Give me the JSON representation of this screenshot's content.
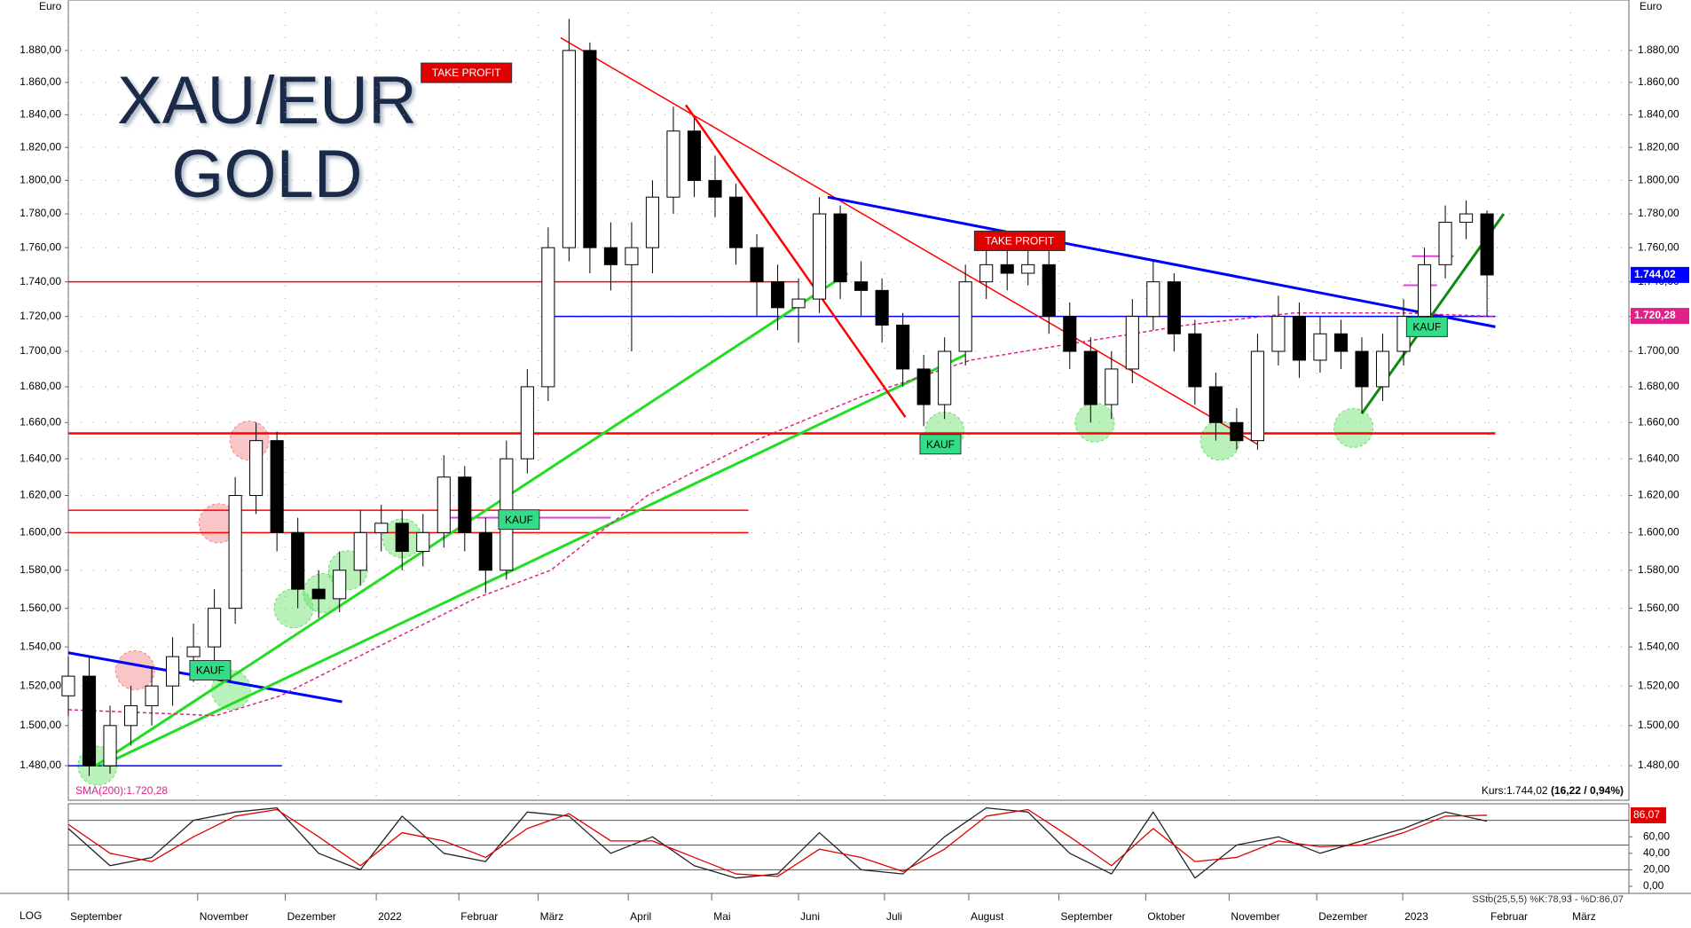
{
  "chart_data": [
    {
      "type": "candlestick",
      "title_lines": [
        "XAU/EUR",
        "GOLD"
      ],
      "y_label": "Euro",
      "scale_label": "LOG",
      "log_scale": true,
      "grid": true,
      "up_color": "#ffffff",
      "down_color": "#000000",
      "x": [
        0,
        0.25,
        0.5,
        0.75,
        1,
        1.25,
        1.5,
        1.75,
        2,
        2.25,
        2.5,
        2.75,
        3,
        3.25,
        3.5,
        3.75,
        4,
        4.25,
        4.5,
        4.75,
        5,
        5.25,
        5.5,
        5.75,
        6,
        6.25,
        6.5,
        6.75,
        7,
        7.25,
        7.5,
        7.75,
        8,
        8.25,
        8.5,
        8.75,
        9,
        9.25,
        9.5,
        9.75,
        10,
        10.25,
        10.5,
        10.75,
        11,
        11.25,
        11.5,
        11.75,
        12,
        12.25,
        12.5,
        12.75,
        13,
        13.25,
        13.5,
        13.75,
        14,
        14.25,
        14.5,
        14.75,
        15,
        15.25,
        15.5,
        15.75,
        16,
        16.25,
        16.5,
        16.75,
        17
      ],
      "open": [
        1515,
        1525,
        1480,
        1500,
        1510,
        1520,
        1535,
        1540,
        1560,
        1620,
        1650,
        1600,
        1570,
        1565,
        1580,
        1600,
        1605,
        1590,
        1600,
        1630,
        1600,
        1580,
        1640,
        1680,
        1760,
        1880,
        1760,
        1750,
        1760,
        1790,
        1830,
        1800,
        1790,
        1760,
        1740,
        1725,
        1730,
        1780,
        1740,
        1735,
        1715,
        1690,
        1670,
        1700,
        1740,
        1750,
        1745,
        1750,
        1720,
        1700,
        1670,
        1690,
        1720,
        1740,
        1710,
        1680,
        1660,
        1650,
        1700,
        1720,
        1695,
        1710,
        1700,
        1680,
        1700,
        1720,
        1750,
        1775,
        1780
      ],
      "high": [
        1535,
        1535,
        1510,
        1520,
        1530,
        1545,
        1552,
        1570,
        1630,
        1660,
        1655,
        1608,
        1580,
        1590,
        1612,
        1615,
        1612,
        1610,
        1642,
        1636,
        1608,
        1650,
        1690,
        1772,
        1900,
        1885,
        1775,
        1775,
        1800,
        1845,
        1838,
        1815,
        1798,
        1768,
        1750,
        1742,
        1790,
        1785,
        1752,
        1742,
        1722,
        1698,
        1708,
        1750,
        1760,
        1762,
        1765,
        1758,
        1728,
        1708,
        1700,
        1730,
        1752,
        1745,
        1718,
        1688,
        1668,
        1710,
        1732,
        1728,
        1720,
        1718,
        1708,
        1710,
        1730,
        1760,
        1785,
        1788,
        1782
      ],
      "low": [
        1505,
        1475,
        1476,
        1490,
        1500,
        1510,
        1522,
        1530,
        1552,
        1610,
        1590,
        1560,
        1555,
        1558,
        1572,
        1590,
        1580,
        1582,
        1592,
        1590,
        1568,
        1575,
        1632,
        1672,
        1752,
        1745,
        1735,
        1700,
        1745,
        1780,
        1790,
        1778,
        1750,
        1720,
        1712,
        1705,
        1722,
        1730,
        1720,
        1705,
        1680,
        1658,
        1662,
        1692,
        1730,
        1735,
        1738,
        1710,
        1690,
        1660,
        1662,
        1682,
        1712,
        1700,
        1670,
        1650,
        1645,
        1645,
        1692,
        1685,
        1688,
        1690,
        1665,
        1672,
        1692,
        1712,
        1742,
        1765,
        1720
      ],
      "close": [
        1525,
        1480,
        1500,
        1510,
        1520,
        1535,
        1540,
        1560,
        1620,
        1650,
        1600,
        1570,
        1565,
        1580,
        1600,
        1605,
        1590,
        1600,
        1630,
        1600,
        1580,
        1640,
        1680,
        1760,
        1880,
        1760,
        1750,
        1760,
        1790,
        1830,
        1800,
        1790,
        1760,
        1740,
        1725,
        1730,
        1780,
        1740,
        1735,
        1715,
        1690,
        1670,
        1700,
        1740,
        1750,
        1745,
        1750,
        1720,
        1700,
        1670,
        1690,
        1720,
        1740,
        1710,
        1680,
        1660,
        1650,
        1700,
        1720,
        1695,
        1710,
        1700,
        1680,
        1700,
        1720,
        1750,
        1775,
        1780,
        1744
      ],
      "xlim": [
        0,
        18.7
      ],
      "ylim": [
        1463,
        1912
      ],
      "yticks": [
        {
          "value": 1480,
          "label": "1.480,00"
        },
        {
          "value": 1500,
          "label": "1.500,00"
        },
        {
          "value": 1520,
          "label": "1.520,00"
        },
        {
          "value": 1540,
          "label": "1.540,00"
        },
        {
          "value": 1560,
          "label": "1.560,00"
        },
        {
          "value": 1580,
          "label": "1.580,00"
        },
        {
          "value": 1600,
          "label": "1.600,00"
        },
        {
          "value": 1620,
          "label": "1.620,00"
        },
        {
          "value": 1640,
          "label": "1.640,00"
        },
        {
          "value": 1660,
          "label": "1.660,00"
        },
        {
          "value": 1680,
          "label": "1.680,00"
        },
        {
          "value": 1700,
          "label": "1.700,00"
        },
        {
          "value": 1720,
          "label": "1.720,00"
        },
        {
          "value": 1740,
          "label": "1.740,00"
        },
        {
          "value": 1760,
          "label": "1.760,00"
        },
        {
          "value": 1780,
          "label": "1.780,00"
        },
        {
          "value": 1800,
          "label": "1.800,00"
        },
        {
          "value": 1820,
          "label": "1.820,00"
        },
        {
          "value": 1840,
          "label": "1.840,00"
        },
        {
          "value": 1860,
          "label": "1.860,00"
        },
        {
          "value": 1880,
          "label": "1.880,00"
        }
      ],
      "xticks": [
        {
          "value": 0,
          "label": "September"
        },
        {
          "value": 1.55,
          "label": "November"
        },
        {
          "value": 2.6,
          "label": "Dezember"
        },
        {
          "value": 3.69,
          "label": "2022"
        },
        {
          "value": 4.68,
          "label": "Februar"
        },
        {
          "value": 5.63,
          "label": "März"
        },
        {
          "value": 6.71,
          "label": "April"
        },
        {
          "value": 7.71,
          "label": "Mai"
        },
        {
          "value": 8.75,
          "label": "Juni"
        },
        {
          "value": 9.78,
          "label": "Juli"
        },
        {
          "value": 10.79,
          "label": "August"
        },
        {
          "value": 11.87,
          "label": "September"
        },
        {
          "value": 12.91,
          "label": "Oktober"
        },
        {
          "value": 13.91,
          "label": "November"
        },
        {
          "value": 14.96,
          "label": "Dezember"
        },
        {
          "value": 15.99,
          "label": "2023"
        },
        {
          "value": 17.02,
          "label": "Februar"
        },
        {
          "value": 18,
          "label": "März"
        }
      ],
      "overlay": {
        "name": "SMA(200):1.720,28",
        "color": "#e0218a",
        "x": [
          0,
          1.77,
          2.54,
          3.71,
          4.87,
          5.78,
          6.94,
          8.23,
          9.53,
          10.81,
          12.1,
          13.4,
          14.69,
          15.98,
          17.08
        ],
        "values": [
          1508,
          1505,
          1515,
          1540,
          1565,
          1580,
          1620,
          1650,
          1675,
          1695,
          1705,
          1715,
          1722,
          1722,
          1720
        ]
      },
      "lines": [
        {
          "x": [
            0,
            8.75
          ],
          "y": [
            1740,
            1740
          ],
          "color": "#ff0000",
          "width": 1.5
        },
        {
          "x": [
            0,
            17.1
          ],
          "y": [
            1654,
            1654
          ],
          "color": "#ff0000",
          "width": 2.5
        },
        {
          "x": [
            0,
            8.15
          ],
          "y": [
            1612,
            1612
          ],
          "color": "#ff0000",
          "width": 1.5
        },
        {
          "x": [
            0,
            8.15
          ],
          "y": [
            1600,
            1600
          ],
          "color": "#ff0000",
          "width": 1.5
        },
        {
          "x": [
            5.75,
            17.1
          ],
          "y": [
            1720,
            1720
          ],
          "color": "#0000ff",
          "width": 1.5
        },
        {
          "x": [
            0,
            2.56
          ],
          "y": [
            1480,
            1480
          ],
          "color": "#0000ff",
          "width": 1.5
        },
        {
          "x": [
            4.5,
            6.5
          ],
          "y": [
            1608,
            1608
          ],
          "color": "#e040e0",
          "width": 2
        },
        {
          "x": [
            16.1,
            16.6
          ],
          "y": [
            1755,
            1755
          ],
          "color": "#e040e0",
          "width": 2
        },
        {
          "x": [
            16.0,
            16.4
          ],
          "y": [
            1738,
            1738
          ],
          "color": "#e040e0",
          "width": 2
        },
        {
          "x": [
            0,
            3.28
          ],
          "y": [
            1537,
            1512
          ],
          "color": "#0000ff",
          "width": 3
        },
        {
          "x": [
            0.33,
            9.34
          ],
          "y": [
            1480,
            1745
          ],
          "color": "#22dd22",
          "width": 3
        },
        {
          "x": [
            0.4,
            10.75
          ],
          "y": [
            1480,
            1698
          ],
          "color": "#22dd22",
          "width": 3
        },
        {
          "x": [
            5.9,
            14.25
          ],
          "y": [
            1888,
            1648
          ],
          "color": "#ff0000",
          "width": 1.5
        },
        {
          "x": [
            7.4,
            10.03
          ],
          "y": [
            1846,
            1663
          ],
          "color": "#ff0000",
          "width": 2.5
        },
        {
          "x": [
            9.1,
            17.1
          ],
          "y": [
            1790,
            1714
          ],
          "color": "#0000ff",
          "width": 3
        },
        {
          "x": [
            15.5,
            17.2
          ],
          "y": [
            1665,
            1780
          ],
          "color": "#118811",
          "width": 3
        }
      ],
      "highlights": [
        {
          "x": 0.35,
          "y": 1480,
          "color": "#66dd66"
        },
        {
          "x": 2.7,
          "y": 1560,
          "color": "#66dd66"
        },
        {
          "x": 3.05,
          "y": 1568,
          "color": "#66dd66"
        },
        {
          "x": 3.35,
          "y": 1580,
          "color": "#66dd66"
        },
        {
          "x": 4,
          "y": 1597,
          "color": "#66dd66"
        },
        {
          "x": 10.5,
          "y": 1655,
          "color": "#66dd66"
        },
        {
          "x": 12.3,
          "y": 1660,
          "color": "#66dd66"
        },
        {
          "x": 13.8,
          "y": 1650,
          "color": "#66dd66"
        },
        {
          "x": 15.4,
          "y": 1657,
          "color": "#66dd66"
        },
        {
          "x": 1.95,
          "y": 1518,
          "color": "#66dd66"
        },
        {
          "x": 2.17,
          "y": 1650,
          "color": "#f08080"
        },
        {
          "x": 1.8,
          "y": 1605,
          "color": "#f08080"
        },
        {
          "x": 0.8,
          "y": 1528,
          "color": "#f08080"
        }
      ],
      "annotations": [
        {
          "text": "TAKE PROFIT",
          "x": 4.77,
          "y": 1866,
          "color": "#e00000"
        },
        {
          "text": "TAKE PROFIT",
          "x": 11.4,
          "y": 1764,
          "color": "#e00000"
        },
        {
          "text": "KAUF",
          "x": 1.7,
          "y": 1528,
          "color": "#33dd88"
        },
        {
          "text": "KAUF",
          "x": 5.4,
          "y": 1607,
          "color": "#33dd88"
        },
        {
          "text": "KAUF",
          "x": 10.45,
          "y": 1648,
          "color": "#33dd88"
        },
        {
          "text": "KAUF",
          "x": 16.28,
          "y": 1714,
          "color": "#33dd88"
        }
      ],
      "price_tags": [
        {
          "value": 1744.02,
          "label": "1.744,02",
          "color": "#0000ff"
        },
        {
          "value": 1720.28,
          "label": "1.720,28",
          "color": "#e0218a"
        }
      ],
      "info_label": "Kurs:1.744,02",
      "info_change": "(16,22 / 0,94%)"
    },
    {
      "type": "line",
      "title": "SSto(25,5,5) %K:78,93 - %D:86,07",
      "x": [
        0,
        0.5,
        1,
        1.5,
        2,
        2.5,
        3,
        3.5,
        4,
        4.5,
        5,
        5.5,
        6,
        6.5,
        7,
        7.5,
        8,
        8.5,
        9,
        9.5,
        10,
        10.5,
        11,
        11.5,
        12,
        12.5,
        13,
        13.5,
        14,
        14.5,
        15,
        15.5,
        16,
        16.5,
        17
      ],
      "series": [
        {
          "color": "#222222",
          "values": [
            70,
            25,
            35,
            80,
            90,
            95,
            40,
            20,
            85,
            40,
            30,
            90,
            85,
            40,
            60,
            25,
            10,
            15,
            65,
            20,
            15,
            60,
            95,
            90,
            40,
            15,
            90,
            10,
            50,
            60,
            40,
            55,
            70,
            90,
            78.93
          ]
        },
        {
          "color": "#e00000",
          "values": [
            75,
            40,
            30,
            60,
            85,
            93,
            60,
            25,
            65,
            55,
            35,
            70,
            88,
            55,
            55,
            35,
            15,
            12,
            45,
            35,
            18,
            45,
            85,
            93,
            60,
            25,
            70,
            30,
            35,
            55,
            48,
            50,
            65,
            85,
            86.07
          ]
        }
      ],
      "xlim": [
        0,
        18.7
      ],
      "ylim": [
        -8.6,
        100
      ],
      "yticks": [
        {
          "value": 0,
          "label": "0,00"
        },
        {
          "value": 20,
          "label": "20,00"
        },
        {
          "value": 40,
          "label": "40,00"
        },
        {
          "value": 60,
          "label": "60,00"
        }
      ],
      "levels": [
        20,
        50,
        80
      ],
      "d_tag": {
        "value": 86.07,
        "label": "86,07"
      }
    }
  ]
}
